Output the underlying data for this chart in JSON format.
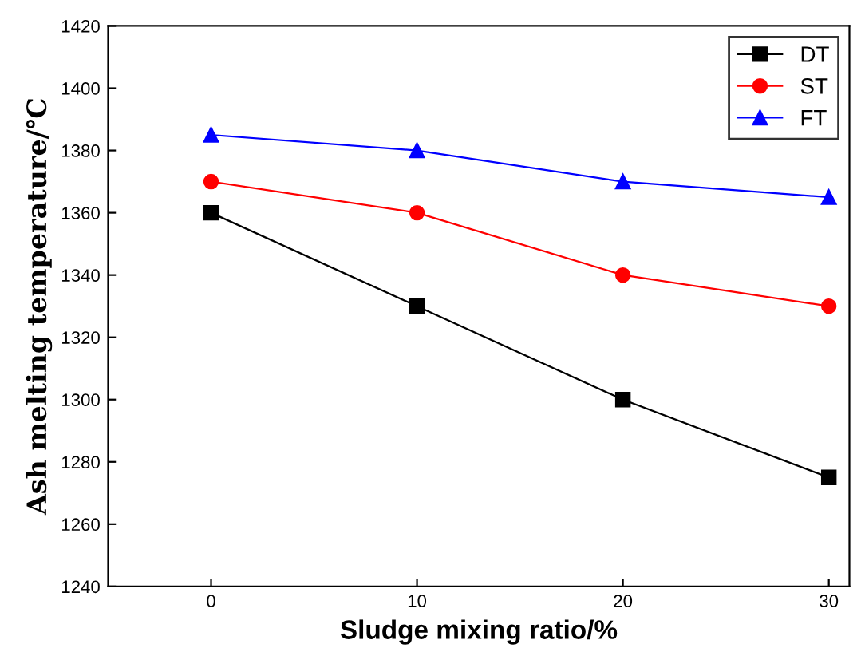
{
  "chart_data": {
    "type": "line",
    "xlabel": "Sludge mixing ratio/%",
    "ylabel": "Ash melting temperature/℃",
    "x": [
      0,
      10,
      20,
      30
    ],
    "series": [
      {
        "name": "DT",
        "color": "#000000",
        "marker": "square",
        "values": [
          1360,
          1330,
          1300,
          1275
        ]
      },
      {
        "name": "ST",
        "color": "#ff0000",
        "marker": "circle",
        "values": [
          1370,
          1360,
          1340,
          1330
        ]
      },
      {
        "name": "FT",
        "color": "#0000ff",
        "marker": "triangle",
        "values": [
          1385,
          1380,
          1370,
          1365
        ]
      }
    ],
    "xlim": [
      -5,
      31
    ],
    "xticks": [
      0,
      10,
      20,
      30
    ],
    "ylim": [
      1240,
      1420
    ],
    "yticks": [
      1240,
      1260,
      1280,
      1300,
      1320,
      1340,
      1360,
      1380,
      1400,
      1420
    ],
    "grid": false,
    "legend": "top right",
    "line_style": "solid"
  }
}
